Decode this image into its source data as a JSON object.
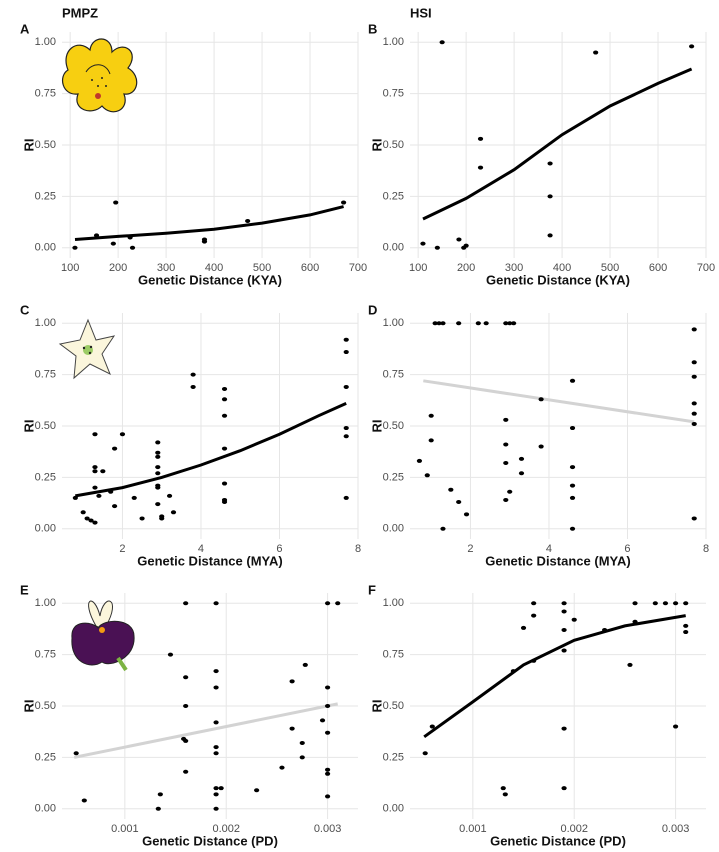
{
  "chart_data": [
    {
      "type": "scatter",
      "panel": "A",
      "title": "PMPZ",
      "x_label": "Genetic Distance (KYA)",
      "y_label": "RI",
      "xlim": [
        83,
        700
      ],
      "ylim": [
        -0.05,
        1.05
      ],
      "xticks": [
        100,
        200,
        300,
        400,
        500,
        600,
        700
      ],
      "yticks": [
        {
          "value": 0,
          "label": "0.00"
        },
        0.25,
        {
          "value": 0.5,
          "label": "0.50"
        },
        0.75,
        {
          "value": 1,
          "label": "1.00"
        }
      ],
      "grid": true,
      "points": {
        "color": "#000000",
        "x": [
          110,
          155,
          190,
          195,
          225,
          230,
          380,
          380,
          470,
          670
        ],
        "y": [
          0.0,
          0.06,
          0.02,
          0.22,
          0.05,
          0.0,
          0.04,
          0.03,
          0.13,
          0.22
        ]
      },
      "fit": {
        "color": "#000000",
        "x": [
          110,
          200,
          300,
          400,
          500,
          600,
          670
        ],
        "y": [
          0.04,
          0.055,
          0.07,
          0.09,
          0.12,
          0.16,
          0.2
        ]
      }
    },
    {
      "type": "scatter",
      "panel": "B",
      "title": "HSI",
      "x_label": "Genetic Distance (KYA)",
      "y_label": "RI",
      "xlim": [
        83,
        700
      ],
      "ylim": [
        -0.05,
        1.05
      ],
      "xticks": [
        100,
        200,
        300,
        400,
        500,
        600,
        700
      ],
      "yticks": [
        {
          "value": 0,
          "label": "0.00"
        },
        0.25,
        {
          "value": 0.5,
          "label": "0.50"
        },
        0.75,
        {
          "value": 1,
          "label": "1.00"
        }
      ],
      "grid": true,
      "points": {
        "color": "#000000",
        "x": [
          110,
          140,
          150,
          185,
          195,
          200,
          230,
          230,
          375,
          375,
          375,
          470,
          670
        ],
        "y": [
          0.02,
          0.0,
          1.0,
          0.04,
          0.0,
          0.01,
          0.53,
          0.39,
          0.41,
          0.25,
          0.06,
          0.95,
          0.98
        ]
      },
      "fit": {
        "color": "#000000",
        "x": [
          110,
          200,
          300,
          400,
          500,
          600,
          670
        ],
        "y": [
          0.14,
          0.24,
          0.38,
          0.55,
          0.69,
          0.8,
          0.87
        ]
      }
    },
    {
      "type": "scatter",
      "panel": "C",
      "x_label": "Genetic Distance (MYA)",
      "y_label": "RI",
      "xlim": [
        0.46,
        8
      ],
      "ylim": [
        -0.05,
        1.05
      ],
      "xticks": [
        2,
        4,
        6,
        8
      ],
      "yticks": [
        {
          "value": 0,
          "label": "0.00"
        },
        0.25,
        {
          "value": 0.5,
          "label": "0.50"
        },
        0.75,
        {
          "value": 1,
          "label": "1.00"
        }
      ],
      "grid": true,
      "points": {
        "color": "#000000",
        "x": [
          0.8,
          1.0,
          1.1,
          1.2,
          1.3,
          1.3,
          1.3,
          1.3,
          1.3,
          1.4,
          1.5,
          1.7,
          1.8,
          1.8,
          2.0,
          2.3,
          2.5,
          2.9,
          2.9,
          2.9,
          2.9,
          2.9,
          2.9,
          2.9,
          2.9,
          3.0,
          3.0,
          3.2,
          3.3,
          3.8,
          3.8,
          4.6,
          4.6,
          4.6,
          4.6,
          4.6,
          4.6,
          4.6,
          7.7,
          7.7,
          7.7,
          7.7,
          7.7,
          7.7
        ],
        "y": [
          0.15,
          0.08,
          0.05,
          0.04,
          0.03,
          0.46,
          0.3,
          0.28,
          0.2,
          0.16,
          0.28,
          0.18,
          0.39,
          0.11,
          0.46,
          0.15,
          0.05,
          0.42,
          0.37,
          0.35,
          0.3,
          0.27,
          0.21,
          0.2,
          0.12,
          0.06,
          0.05,
          0.16,
          0.08,
          0.75,
          0.69,
          0.68,
          0.63,
          0.55,
          0.39,
          0.22,
          0.14,
          0.13,
          0.92,
          0.86,
          0.69,
          0.49,
          0.45,
          0.15
        ]
      },
      "fit": {
        "color": "#000000",
        "x": [
          0.8,
          2,
          3,
          4,
          5,
          6,
          7,
          7.7
        ],
        "y": [
          0.16,
          0.2,
          0.25,
          0.31,
          0.38,
          0.46,
          0.55,
          0.61
        ]
      }
    },
    {
      "type": "scatter",
      "panel": "D",
      "x_label": "Genetic Distance (MYA)",
      "y_label": "RI",
      "xlim": [
        0.46,
        8
      ],
      "ylim": [
        -0.05,
        1.05
      ],
      "xticks": [
        2,
        4,
        6,
        8
      ],
      "yticks": [
        {
          "value": 0,
          "label": "0.00"
        },
        0.25,
        {
          "value": 0.5,
          "label": "0.50"
        },
        0.75,
        {
          "value": 1,
          "label": "1.00"
        }
      ],
      "grid": true,
      "points": {
        "color": "#000000",
        "x": [
          0.7,
          0.9,
          1.0,
          1.0,
          1.1,
          1.2,
          1.3,
          1.3,
          1.5,
          1.7,
          1.7,
          1.9,
          2.2,
          2.4,
          2.9,
          3.0,
          3.1,
          2.9,
          2.9,
          2.9,
          2.9,
          3.0,
          3.3,
          3.3,
          3.8,
          3.8,
          4.6,
          4.6,
          4.6,
          4.6,
          4.6,
          4.6,
          7.7,
          7.7,
          7.7,
          7.7,
          7.7,
          7.7,
          7.7
        ],
        "y": [
          0.33,
          0.26,
          0.43,
          0.55,
          1.0,
          1.0,
          1.0,
          0.0,
          0.19,
          1.0,
          0.13,
          0.07,
          1.0,
          1.0,
          1.0,
          1.0,
          1.0,
          0.53,
          0.41,
          0.32,
          0.14,
          0.18,
          0.34,
          0.27,
          0.63,
          0.4,
          0.72,
          0.49,
          0.3,
          0.21,
          0.15,
          0.0,
          0.97,
          0.81,
          0.74,
          0.61,
          0.56,
          0.51,
          0.05
        ]
      },
      "fit": {
        "color": "#d3d3d3",
        "x": [
          0.8,
          7.7
        ],
        "y": [
          0.72,
          0.52
        ]
      }
    },
    {
      "type": "scatter",
      "panel": "E",
      "x_label": "Genetic Distance (PD)",
      "y_label": "RI",
      "xlim": [
        0.00038,
        0.0033
      ],
      "ylim": [
        -0.05,
        1.05
      ],
      "xticks": [
        0.001,
        0.002,
        0.003
      ],
      "yticks": [
        {
          "value": 0,
          "label": "0.00"
        },
        0.25,
        {
          "value": 0.5,
          "label": "0.50"
        },
        0.75,
        {
          "value": 1,
          "label": "1.00"
        }
      ],
      "grid": true,
      "points": {
        "color": "#000000",
        "x": [
          0.00052,
          0.0006,
          0.00135,
          0.00133,
          0.00145,
          0.00158,
          0.0016,
          0.0016,
          0.0016,
          0.0016,
          0.0016,
          0.0019,
          0.0019,
          0.0019,
          0.0019,
          0.0019,
          0.0019,
          0.0019,
          0.0019,
          0.0019,
          0.00195,
          0.0023,
          0.00255,
          0.00265,
          0.00265,
          0.00275,
          0.00275,
          0.00278,
          0.00295,
          0.003,
          0.0031,
          0.003,
          0.003,
          0.003,
          0.003,
          0.003,
          0.003
        ],
        "y": [
          0.27,
          0.04,
          0.07,
          0.0,
          0.75,
          0.34,
          1.0,
          0.64,
          0.5,
          0.33,
          0.18,
          1.0,
          0.67,
          0.59,
          0.42,
          0.3,
          0.27,
          0.1,
          0.07,
          0.0,
          0.1,
          0.09,
          0.2,
          0.62,
          0.39,
          0.32,
          0.25,
          0.7,
          0.43,
          1.0,
          1.0,
          0.59,
          0.5,
          0.37,
          0.19,
          0.17,
          0.06
        ]
      },
      "fit": {
        "color": "#d3d3d3",
        "x": [
          0.0005,
          0.0031
        ],
        "y": [
          0.25,
          0.51
        ]
      }
    },
    {
      "type": "scatter",
      "panel": "F",
      "x_label": "Genetic Distance (PD)",
      "y_label": "RI",
      "xlim": [
        0.00038,
        0.0033
      ],
      "ylim": [
        -0.05,
        1.05
      ],
      "xticks": [
        0.001,
        0.002,
        0.003
      ],
      "yticks": [
        {
          "value": 0,
          "label": "0.00"
        },
        0.25,
        {
          "value": 0.5,
          "label": "0.50"
        },
        0.75,
        {
          "value": 1,
          "label": "1.00"
        }
      ],
      "grid": true,
      "points": {
        "color": "#000000",
        "x": [
          0.00053,
          0.0006,
          0.0013,
          0.00132,
          0.0014,
          0.0015,
          0.0016,
          0.0016,
          0.0016,
          0.0019,
          0.0019,
          0.0019,
          0.0019,
          0.0019,
          0.0019,
          0.002,
          0.0023,
          0.00255,
          0.0026,
          0.0026,
          0.0028,
          0.0029,
          0.003,
          0.0031,
          0.0031,
          0.0031,
          0.003
        ],
        "y": [
          0.27,
          0.4,
          0.1,
          0.07,
          0.67,
          0.88,
          1.0,
          0.94,
          0.72,
          1.0,
          0.96,
          0.87,
          0.77,
          0.39,
          0.1,
          0.92,
          0.87,
          0.7,
          1.0,
          0.91,
          1.0,
          1.0,
          1.0,
          1.0,
          0.89,
          0.86,
          0.4
        ]
      },
      "fit": {
        "color": "#000000",
        "x": [
          0.00052,
          0.001,
          0.0015,
          0.002,
          0.0025,
          0.0031
        ],
        "y": [
          0.35,
          0.52,
          0.7,
          0.82,
          0.89,
          0.94
        ]
      }
    }
  ]
}
